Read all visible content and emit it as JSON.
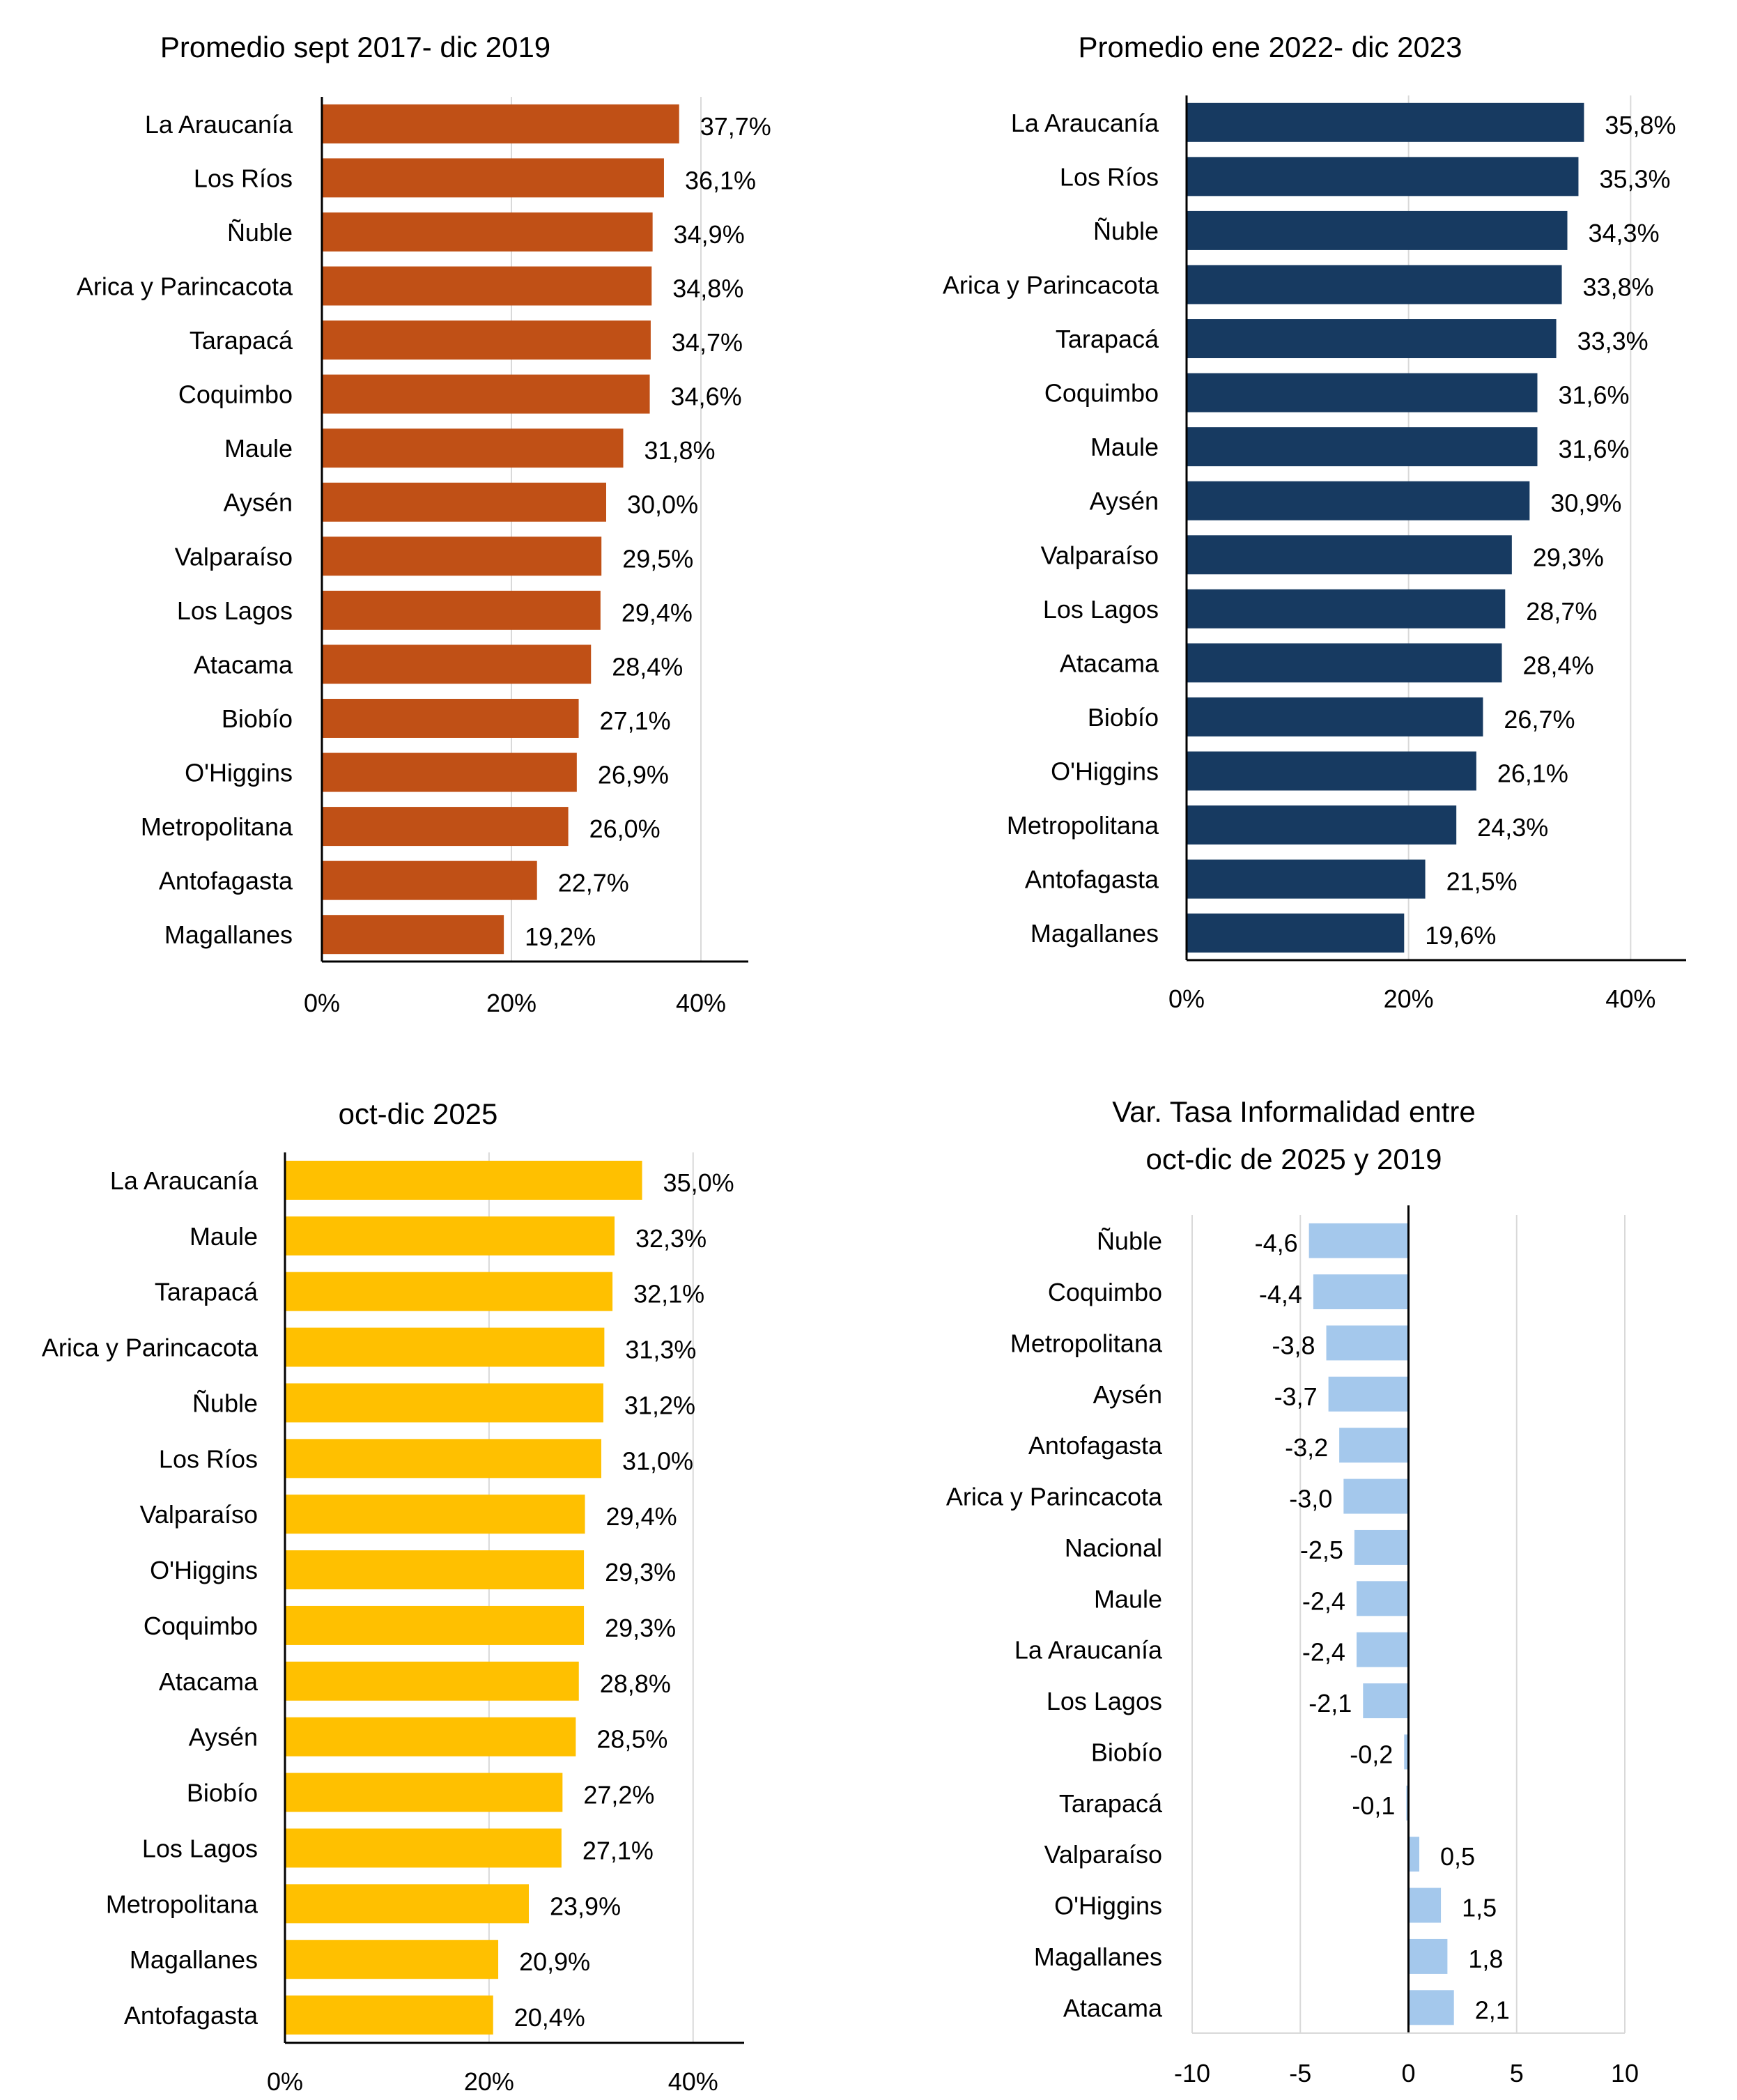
{
  "chart_data": [
    {
      "type": "bar",
      "orientation": "horizontal",
      "title": "Promedio sept 2017- dic 2019",
      "color": "#C05016",
      "categories": [
        "La Araucanía",
        "Los Ríos",
        "Ñuble",
        "Arica y Parincacota",
        "Tarapacá",
        "Coquimbo",
        "Maule",
        "Aysén",
        "Valparaíso",
        "Los Lagos",
        "Atacama",
        "Biobío",
        "O'Higgins",
        "Metropolitana",
        "Antofagasta",
        "Magallanes"
      ],
      "values": [
        37.7,
        36.1,
        34.9,
        34.8,
        34.7,
        34.6,
        31.8,
        30.0,
        29.5,
        29.4,
        28.4,
        27.1,
        26.9,
        26.0,
        22.7,
        19.2
      ],
      "value_labels": [
        "37,7%",
        "36,1%",
        "34,9%",
        "34,8%",
        "34,7%",
        "34,6%",
        "31,8%",
        "30,0%",
        "29,5%",
        "29,4%",
        "28,4%",
        "27,1%",
        "26,9%",
        "26,0%",
        "22,7%",
        "19,2%"
      ],
      "xlim": [
        0,
        45
      ],
      "ticks": [
        0,
        20,
        40
      ],
      "tick_labels": [
        "0%",
        "20%",
        "40%"
      ],
      "grid": true
    },
    {
      "type": "bar",
      "orientation": "horizontal",
      "title": "Promedio ene 2022- dic 2023",
      "color": "#173A61",
      "categories": [
        "La Araucanía",
        "Los Ríos",
        "Ñuble",
        "Arica y Parincacota",
        "Tarapacá",
        "Coquimbo",
        "Maule",
        "Aysén",
        "Valparaíso",
        "Los Lagos",
        "Atacama",
        "Biobío",
        "O'Higgins",
        "Metropolitana",
        "Antofagasta",
        "Magallanes"
      ],
      "values": [
        35.8,
        35.3,
        34.3,
        33.8,
        33.3,
        31.6,
        31.6,
        30.9,
        29.3,
        28.7,
        28.4,
        26.7,
        26.1,
        24.3,
        21.5,
        19.6
      ],
      "value_labels": [
        "35,8%",
        "35,3%",
        "34,3%",
        "33,8%",
        "33,3%",
        "31,6%",
        "31,6%",
        "30,9%",
        "29,3%",
        "28,7%",
        "28,4%",
        "26,7%",
        "26,1%",
        "24,3%",
        "21,5%",
        "19,6%"
      ],
      "xlim": [
        0,
        45
      ],
      "ticks": [
        0,
        20,
        40
      ],
      "tick_labels": [
        "0%",
        "20%",
        "40%"
      ],
      "grid": true
    },
    {
      "type": "bar",
      "orientation": "horizontal",
      "title": "oct-dic 2025",
      "color": "#FFC000",
      "categories": [
        "La Araucanía",
        "Maule",
        "Tarapacá",
        "Arica y Parincacota",
        "Ñuble",
        "Los Ríos",
        "Valparaíso",
        "O'Higgins",
        "Coquimbo",
        "Atacama",
        "Aysén",
        "Biobío",
        "Los Lagos",
        "Metropolitana",
        "Magallanes",
        "Antofagasta"
      ],
      "values": [
        35.0,
        32.3,
        32.1,
        31.3,
        31.2,
        31.0,
        29.4,
        29.3,
        29.3,
        28.8,
        28.5,
        27.2,
        27.1,
        23.9,
        20.9,
        20.4
      ],
      "value_labels": [
        "35,0%",
        "32,3%",
        "32,1%",
        "31,3%",
        "31,2%",
        "31,0%",
        "29,4%",
        "29,3%",
        "29,3%",
        "28,8%",
        "28,5%",
        "27,2%",
        "27,1%",
        "23,9%",
        "20,9%",
        "20,4%"
      ],
      "xlim": [
        0,
        45
      ],
      "ticks": [
        0,
        20,
        40
      ],
      "tick_labels": [
        "0%",
        "20%",
        "40%"
      ],
      "grid": true
    },
    {
      "type": "bar",
      "orientation": "horizontal",
      "title": "Var. Tasa Informalidad entre oct-dic de 2025 y 2019",
      "title_lines": [
        "Var. Tasa Informalidad entre",
        "oct-dic de 2025 y 2019"
      ],
      "color": "#A4C8EC",
      "categories": [
        "Ñuble",
        "Coquimbo",
        "Metropolitana",
        "Aysén",
        "Antofagasta",
        "Arica y Parincacota",
        "Nacional",
        "Maule",
        "La Araucanía",
        "Los Lagos",
        "Biobío",
        "Tarapacá",
        "Valparaíso",
        "O'Higgins",
        "Magallanes",
        "Atacama"
      ],
      "values": [
        -4.6,
        -4.4,
        -3.8,
        -3.7,
        -3.2,
        -3.0,
        -2.5,
        -2.4,
        -2.4,
        -2.1,
        -0.2,
        -0.1,
        0.5,
        1.5,
        1.8,
        2.1
      ],
      "value_labels": [
        "-4,6",
        "-4,4",
        "-3,8",
        "-3,7",
        "-3,2",
        "-3,0",
        "-2,5",
        "-2,4",
        "-2,4",
        "-2,1",
        "-0,2",
        "-0,1",
        "0,5",
        "1,5",
        "1,8",
        "2,1"
      ],
      "xlim": [
        -10,
        10
      ],
      "ticks": [
        -10,
        -5,
        0,
        5,
        10
      ],
      "tick_labels": [
        "-10",
        "-5",
        "0",
        "5",
        "10"
      ],
      "grid": true
    }
  ]
}
